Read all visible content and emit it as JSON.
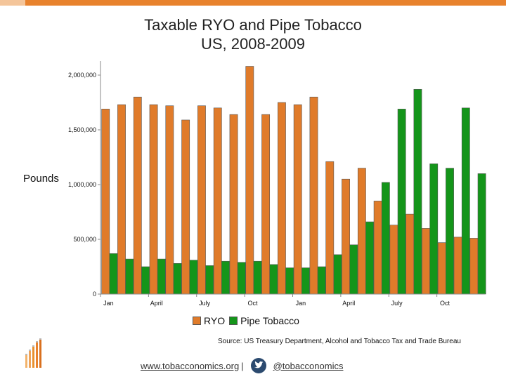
{
  "header": {
    "title_line1": "Taxable RYO and Pipe Tobacco",
    "title_line2": "US, 2008-2009"
  },
  "colors": {
    "accent": "#e8822d",
    "ryo": "#e07b2a",
    "pipe": "#14951a"
  },
  "chart_data": {
    "type": "bar",
    "title": "Taxable RYO and Pipe Tobacco US, 2008-2009",
    "ylabel": "Pounds",
    "xlabel": "",
    "ylim": [
      0,
      2100000
    ],
    "yticks": [
      0,
      500000,
      1000000,
      1500000,
      2000000
    ],
    "ytick_labels": [
      "0",
      "500,000",
      "1,000,000",
      "1,500,000",
      "2,000,000"
    ],
    "categories": [
      "Jan 2008",
      "Feb 2008",
      "Mar 2008",
      "Apr 2008",
      "May 2008",
      "Jun 2008",
      "Jul 2008",
      "Aug 2008",
      "Sep 2008",
      "Oct 2008",
      "Nov 2008",
      "Dec 2008",
      "Jan 2009",
      "Feb 2009",
      "Mar 2009",
      "Apr 2009",
      "May 2009",
      "Jun 2009",
      "Jul 2009",
      "Aug 2009",
      "Sep 2009",
      "Oct 2009",
      "Nov 2009",
      "Dec 2009"
    ],
    "xtick_labels": [
      {
        "index": 0,
        "label": "Jan"
      },
      {
        "index": 3,
        "label": "April"
      },
      {
        "index": 6,
        "label": "July"
      },
      {
        "index": 9,
        "label": "Oct"
      },
      {
        "index": 12,
        "label": "Jan"
      },
      {
        "index": 15,
        "label": "April"
      },
      {
        "index": 18,
        "label": "July"
      },
      {
        "index": 21,
        "label": "Oct"
      }
    ],
    "series": [
      {
        "name": "RYO",
        "values": [
          1690000,
          1730000,
          1800000,
          1730000,
          1720000,
          1590000,
          1720000,
          1700000,
          1640000,
          2080000,
          1640000,
          1750000,
          1730000,
          1800000,
          1210000,
          1050000,
          1150000,
          850000,
          630000,
          730000,
          600000,
          470000,
          520000,
          510000
        ]
      },
      {
        "name": "Pipe Tobacco",
        "values": [
          370000,
          320000,
          250000,
          320000,
          280000,
          310000,
          260000,
          300000,
          290000,
          300000,
          270000,
          240000,
          240000,
          250000,
          360000,
          450000,
          660000,
          1020000,
          1690000,
          1870000,
          1190000,
          1150000,
          1700000,
          1100000
        ]
      }
    ],
    "legend": [
      "RYO",
      "Pipe Tobacco"
    ],
    "legend_position": "bottom"
  },
  "source": "Source:  US Treasury Department, Alcohol and Tobacco Tax and Trade Bureau",
  "footer": {
    "website": "www.tobacconomics.org",
    "separator": "|",
    "twitter": "@tobacconomics"
  }
}
